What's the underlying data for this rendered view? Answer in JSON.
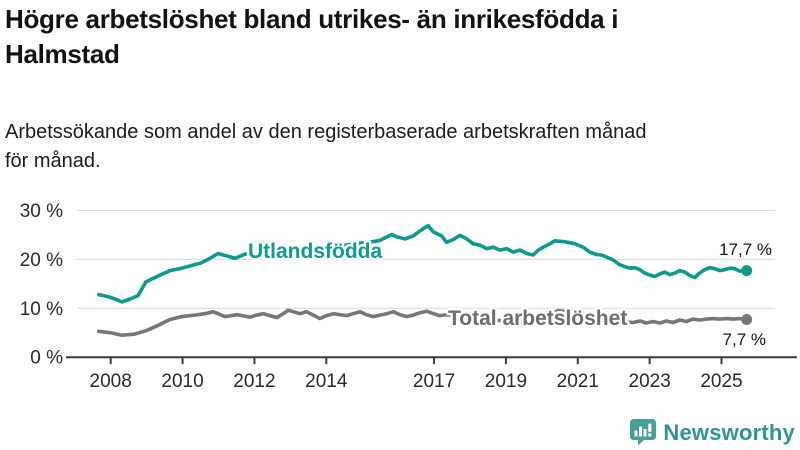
{
  "header": {
    "title_lines": [
      "Högre arbetslöshet bland utrikes- än inrikesfödda i",
      "Halmstad"
    ],
    "subtitle_lines": [
      "Arbetssökande som andel av den registerbaserade arbetskraften månad",
      "för månad."
    ]
  },
  "chart_data": {
    "type": "line",
    "title": "Högre arbetslöshet bland utrikes- än inrikesfödda i Halmstad",
    "subtitle": "Arbetssökande som andel av den registerbaserade arbetskraften månad för månad.",
    "grid": "horizontal",
    "legend_position": "inline-labels",
    "x_axis": {
      "range": [
        2007.67,
        2025.7
      ],
      "ticks": [
        2008,
        2010,
        2012,
        2014,
        2017,
        2019,
        2021,
        2023,
        2025
      ],
      "tick_labels": [
        "2008",
        "2010",
        "2012",
        "2014",
        "2017",
        "2019",
        "2021",
        "2023",
        "2025"
      ]
    },
    "y_axis": {
      "range": [
        0,
        30
      ],
      "unit": "%",
      "ticks": [
        0,
        10,
        20,
        30
      ],
      "tick_labels": [
        "0 %",
        "10 %",
        "20 %",
        "30 %"
      ]
    },
    "series": [
      {
        "name": "Utlandsfödda",
        "color": "#0d9a8d",
        "label_color": "#0f9b8e",
        "end_label": "17,7 %",
        "end_value": 17.7,
        "points": [
          [
            2007.67,
            12.8
          ],
          [
            2007.92,
            12.4
          ],
          [
            2008.12,
            11.9
          ],
          [
            2008.31,
            11.3
          ],
          [
            2008.54,
            11.9
          ],
          [
            2008.76,
            12.6
          ],
          [
            2008.98,
            15.4
          ],
          [
            2009.32,
            16.6
          ],
          [
            2009.65,
            17.7
          ],
          [
            2009.98,
            18.2
          ],
          [
            2010.32,
            18.9
          ],
          [
            2010.49,
            19.2
          ],
          [
            2010.74,
            20.1
          ],
          [
            2010.99,
            21.2
          ],
          [
            2011.24,
            20.7
          ],
          [
            2011.46,
            20.2
          ],
          [
            2011.68,
            20.9
          ],
          [
            2011.88,
            21.4
          ],
          [
            2012.1,
            20.7
          ],
          [
            2012.43,
            20.9
          ],
          [
            2012.85,
            21.2
          ],
          [
            2013.27,
            21.6
          ],
          [
            2013.69,
            22.1
          ],
          [
            2014.1,
            22.5
          ],
          [
            2014.52,
            22.9
          ],
          [
            2014.94,
            23.3
          ],
          [
            2015.36,
            23.7
          ],
          [
            2015.5,
            23.9
          ],
          [
            2015.82,
            25.1
          ],
          [
            2015.96,
            24.6
          ],
          [
            2016.19,
            24.2
          ],
          [
            2016.42,
            24.8
          ],
          [
            2016.7,
            26.3
          ],
          [
            2016.84,
            26.9
          ],
          [
            2016.98,
            25.6
          ],
          [
            2017.21,
            24.8
          ],
          [
            2017.35,
            23.5
          ],
          [
            2017.54,
            24.1
          ],
          [
            2017.72,
            24.9
          ],
          [
            2017.91,
            24.2
          ],
          [
            2018.09,
            23.2
          ],
          [
            2018.28,
            22.9
          ],
          [
            2018.46,
            22.2
          ],
          [
            2018.65,
            22.5
          ],
          [
            2018.83,
            21.9
          ],
          [
            2019.02,
            22.2
          ],
          [
            2019.2,
            21.5
          ],
          [
            2019.39,
            21.9
          ],
          [
            2019.58,
            21.2
          ],
          [
            2019.76,
            20.9
          ],
          [
            2019.9,
            21.9
          ],
          [
            2020.04,
            22.5
          ],
          [
            2020.22,
            23.2
          ],
          [
            2020.36,
            23.8
          ],
          [
            2020.64,
            23.6
          ],
          [
            2020.92,
            23.2
          ],
          [
            2021.15,
            22.5
          ],
          [
            2021.33,
            21.5
          ],
          [
            2021.52,
            21.0
          ],
          [
            2021.66,
            20.9
          ],
          [
            2021.8,
            20.5
          ],
          [
            2021.98,
            19.9
          ],
          [
            2022.17,
            18.9
          ],
          [
            2022.31,
            18.5
          ],
          [
            2022.45,
            18.2
          ],
          [
            2022.59,
            18.3
          ],
          [
            2022.73,
            17.9
          ],
          [
            2022.86,
            17.2
          ],
          [
            2023.0,
            16.8
          ],
          [
            2023.14,
            16.5
          ],
          [
            2023.28,
            17.0
          ],
          [
            2023.42,
            17.4
          ],
          [
            2023.56,
            16.9
          ],
          [
            2023.7,
            17.2
          ],
          [
            2023.84,
            17.7
          ],
          [
            2023.98,
            17.4
          ],
          [
            2024.12,
            16.7
          ],
          [
            2024.26,
            16.3
          ],
          [
            2024.39,
            17.2
          ],
          [
            2024.53,
            17.9
          ],
          [
            2024.67,
            18.3
          ],
          [
            2024.81,
            18.1
          ],
          [
            2024.95,
            17.7
          ],
          [
            2025.09,
            17.9
          ],
          [
            2025.23,
            18.2
          ],
          [
            2025.37,
            18.1
          ],
          [
            2025.51,
            17.6
          ],
          [
            2025.7,
            17.7
          ]
        ]
      },
      {
        "name": "Total arbetslöshet",
        "color": "#77777b",
        "label_color": "#6c6c71",
        "end_label": "7,7 %",
        "end_value": 7.7,
        "points": [
          [
            2007.67,
            5.3
          ],
          [
            2008.0,
            5.0
          ],
          [
            2008.31,
            4.5
          ],
          [
            2008.65,
            4.7
          ],
          [
            2008.98,
            5.4
          ],
          [
            2009.32,
            6.5
          ],
          [
            2009.65,
            7.7
          ],
          [
            2009.98,
            8.3
          ],
          [
            2010.35,
            8.6
          ],
          [
            2010.62,
            8.9
          ],
          [
            2010.85,
            9.3
          ],
          [
            2011.18,
            8.3
          ],
          [
            2011.52,
            8.7
          ],
          [
            2011.88,
            8.2
          ],
          [
            2012.06,
            8.6
          ],
          [
            2012.25,
            8.9
          ],
          [
            2012.43,
            8.5
          ],
          [
            2012.62,
            8.1
          ],
          [
            2012.8,
            8.9
          ],
          [
            2012.94,
            9.6
          ],
          [
            2013.08,
            9.3
          ],
          [
            2013.27,
            8.9
          ],
          [
            2013.45,
            9.3
          ],
          [
            2013.64,
            8.6
          ],
          [
            2013.82,
            7.9
          ],
          [
            2014.01,
            8.5
          ],
          [
            2014.2,
            8.9
          ],
          [
            2014.38,
            8.7
          ],
          [
            2014.57,
            8.5
          ],
          [
            2014.75,
            8.9
          ],
          [
            2014.94,
            9.3
          ],
          [
            2015.12,
            8.7
          ],
          [
            2015.31,
            8.3
          ],
          [
            2015.5,
            8.6
          ],
          [
            2015.68,
            8.9
          ],
          [
            2015.87,
            9.3
          ],
          [
            2016.05,
            8.7
          ],
          [
            2016.24,
            8.3
          ],
          [
            2016.42,
            8.6
          ],
          [
            2016.61,
            9.1
          ],
          [
            2016.79,
            9.4
          ],
          [
            2016.98,
            8.9
          ],
          [
            2017.16,
            8.5
          ],
          [
            2017.35,
            8.7
          ],
          [
            2017.6,
            8.4
          ],
          [
            2017.9,
            8.2
          ],
          [
            2018.2,
            7.9
          ],
          [
            2018.5,
            7.7
          ],
          [
            2018.8,
            7.5
          ],
          [
            2019.1,
            7.3
          ],
          [
            2019.4,
            7.2
          ],
          [
            2019.7,
            7.4
          ],
          [
            2019.95,
            7.6
          ],
          [
            2020.2,
            8.6
          ],
          [
            2020.45,
            9.5
          ],
          [
            2020.7,
            9.3
          ],
          [
            2021.0,
            9.0
          ],
          [
            2021.3,
            8.5
          ],
          [
            2021.6,
            8.0
          ],
          [
            2021.9,
            7.6
          ],
          [
            2022.2,
            7.3
          ],
          [
            2022.54,
            7.1
          ],
          [
            2022.73,
            7.4
          ],
          [
            2022.91,
            7.0
          ],
          [
            2023.1,
            7.3
          ],
          [
            2023.28,
            7.0
          ],
          [
            2023.47,
            7.4
          ],
          [
            2023.65,
            7.1
          ],
          [
            2023.84,
            7.6
          ],
          [
            2024.02,
            7.3
          ],
          [
            2024.21,
            7.8
          ],
          [
            2024.39,
            7.6
          ],
          [
            2024.58,
            7.8
          ],
          [
            2024.76,
            7.9
          ],
          [
            2024.95,
            7.8
          ],
          [
            2025.14,
            7.9
          ],
          [
            2025.32,
            7.8
          ],
          [
            2025.51,
            7.9
          ],
          [
            2025.7,
            7.7
          ]
        ]
      }
    ],
    "colors": {
      "grid": "#d9d9d9",
      "axis": "#3c3c3c",
      "axis_text": "#2b2b2b"
    }
  },
  "footer": {
    "brand": "Newsworthy",
    "brand_color": "#2e968e",
    "icon_color": "#47a098",
    "icon": "newsworthy-chart-bubble-icon"
  }
}
